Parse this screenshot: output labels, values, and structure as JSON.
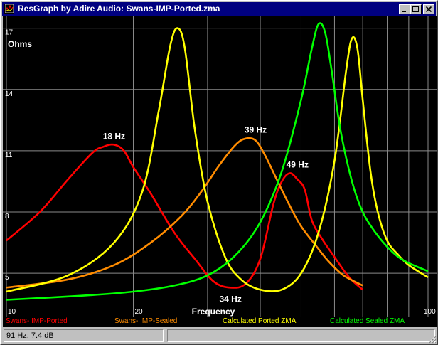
{
  "window": {
    "title": "ResGraph by Adire Audio: Swans-IMP-Ported.zma"
  },
  "chart_data": {
    "type": "line",
    "x_scale": "log",
    "xlim": [
      10,
      100
    ],
    "ylim": [
      3.3,
      17.3
    ],
    "xlabel": "Frequency",
    "ylabel": "Ohms",
    "x_ticks": [
      "10",
      "20",
      "100"
    ],
    "y_ticks": [
      {
        "v": 5,
        "t": "5"
      },
      {
        "v": 8,
        "t": "8"
      },
      {
        "v": 11,
        "t": "11"
      },
      {
        "v": 14,
        "t": "14"
      },
      {
        "v": 17,
        "t": "17"
      }
    ],
    "x_grid": [
      10,
      20,
      30,
      40,
      50,
      60,
      70,
      80,
      90,
      100
    ],
    "grid": true,
    "series": [
      {
        "name": "Swans- IMP-Ported",
        "color": "#ff0000",
        "x": [
          10,
          12,
          14,
          16,
          17,
          18,
          19,
          20,
          22,
          25,
          28,
          31,
          34,
          37,
          40,
          43,
          45,
          47,
          49,
          51,
          53,
          56,
          60,
          65,
          70
        ],
        "y": [
          6.6,
          8.0,
          9.6,
          10.9,
          11.2,
          11.3,
          11.0,
          10.2,
          8.9,
          7.0,
          5.7,
          4.6,
          4.3,
          4.5,
          5.7,
          8.4,
          9.5,
          9.9,
          9.6,
          9.1,
          7.6,
          6.7,
          5.8,
          4.8,
          4.2
        ]
      },
      {
        "name": "Swans- IMP-Sealed",
        "color": "#ff8c00",
        "x": [
          10,
          14,
          18,
          22,
          26,
          29,
          32,
          35,
          37,
          39,
          41,
          44,
          47,
          50,
          54,
          58,
          63,
          70
        ],
        "y": [
          4.3,
          4.7,
          5.4,
          6.5,
          7.8,
          9.0,
          10.3,
          11.3,
          11.6,
          11.5,
          10.8,
          9.5,
          8.3,
          7.3,
          6.4,
          5.6,
          4.9,
          4.4
        ]
      },
      {
        "name": "Calculated Ported ZMA",
        "color": "#ffff00",
        "x": [
          10,
          14,
          18,
          21,
          23,
          24.5,
          25.5,
          26.5,
          28,
          30,
          33,
          36,
          40,
          45,
          50,
          55,
          60,
          64,
          66,
          68,
          70,
          73,
          76,
          80,
          85,
          90,
          100
        ],
        "y": [
          4.1,
          4.9,
          6.5,
          9.0,
          13.0,
          16.2,
          17.0,
          16.0,
          12.0,
          8.5,
          5.8,
          4.7,
          4.2,
          4.2,
          5.0,
          7.0,
          10.5,
          15.0,
          16.5,
          16.0,
          13.5,
          10.0,
          8.0,
          6.6,
          5.9,
          5.4,
          4.8
        ]
      },
      {
        "name": "Calculated Sealed ZMA",
        "color": "#00ff00",
        "x": [
          10,
          15,
          20,
          25,
          30,
          35,
          40,
          45,
          50,
          53,
          55,
          57,
          59,
          62,
          66,
          70,
          75,
          80,
          85,
          90,
          100
        ],
        "y": [
          3.7,
          3.9,
          4.1,
          4.4,
          4.9,
          5.9,
          7.5,
          10.0,
          13.5,
          16.0,
          17.2,
          16.8,
          15.0,
          12.0,
          9.5,
          8.0,
          7.0,
          6.3,
          5.8,
          5.5,
          5.1
        ]
      }
    ],
    "annotations": [
      {
        "text": "18 Hz",
        "x": 18,
        "y": 11.3
      },
      {
        "text": "39 Hz",
        "x": 39,
        "y": 11.6
      },
      {
        "text": "49 Hz",
        "x": 49,
        "y": 9.9
      },
      {
        "text": "34 Hz",
        "x": 34,
        "y": 4.3
      }
    ]
  },
  "legend": [
    "Swans- IMP-Ported",
    "Swans- IMP-Sealed",
    "Calculated Ported ZMA",
    "Calculated Sealed ZMA"
  ],
  "status": {
    "readout": "91 Hz: 7.4 dB",
    "secondary": ""
  }
}
